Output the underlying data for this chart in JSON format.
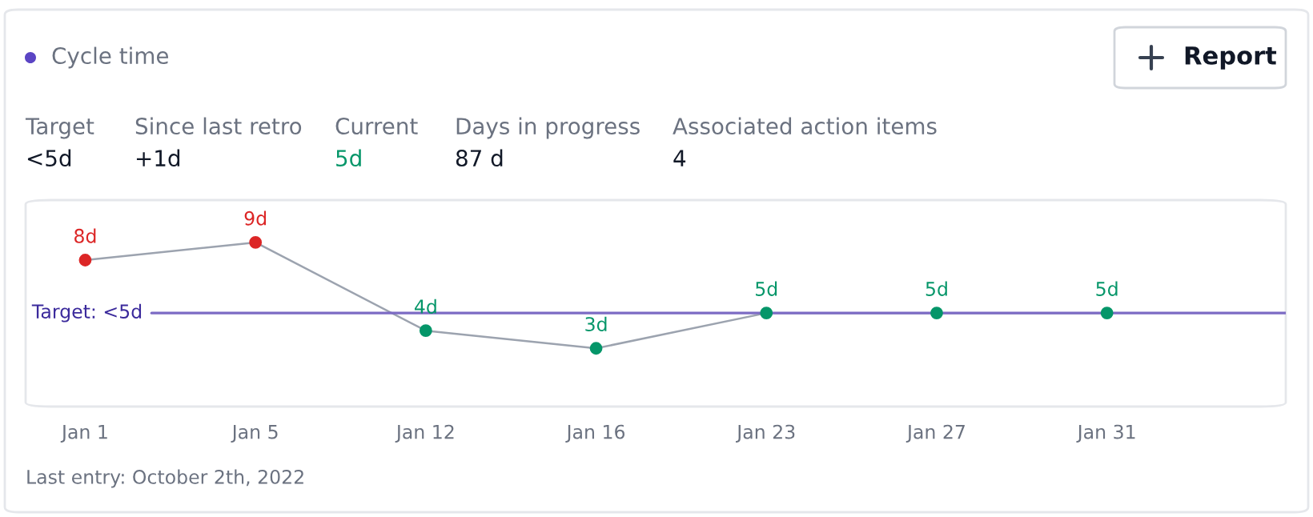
{
  "chart_data": {
    "type": "line",
    "title": "Cycle time",
    "categories": [
      "Jan 1",
      "Jan 5",
      "Jan 12",
      "Jan 16",
      "Jan 23",
      "Jan 27",
      "Jan 31"
    ],
    "series": [
      {
        "color": "#9ca3af",
        "values": [
          8,
          9,
          4,
          3,
          5,
          5,
          5
        ],
        "colors": [
          "#dc2626",
          "#dc2626",
          "#059669",
          "#059669",
          "#059669",
          "#059669",
          "#059669"
        ],
        "value_labels": [
          "8d",
          "9d",
          "4d",
          "3d",
          "5d",
          "5d",
          "5d"
        ]
      }
    ],
    "marker": "circle",
    "line_style": "solid",
    "grid": false,
    "legend": false,
    "ref_lines": [
      {
        "axis": "y",
        "value": 5,
        "label": "Target: <5d",
        "color": "#7c6bc4"
      }
    ],
    "annotations": [
      "Target",
      "<5d",
      "Since last retro",
      "+1d",
      "Current",
      "5d",
      "Days in progress",
      "87 d",
      "Associated action items",
      "4",
      "Report",
      "Last entry: October 2th, 2022"
    ]
  }
}
